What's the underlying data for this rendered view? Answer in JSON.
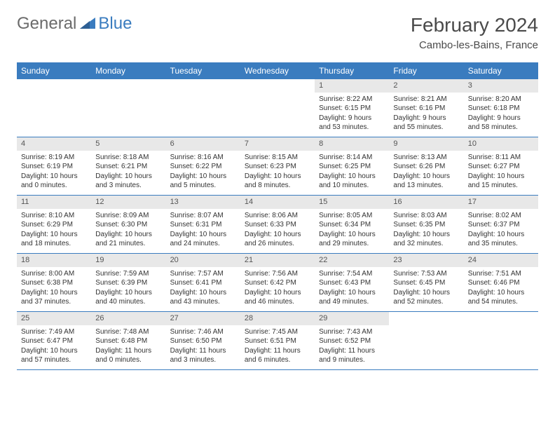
{
  "brand": {
    "textGray": "General",
    "textBlue": "Blue"
  },
  "title": "February 2024",
  "subtitle": "Cambo-les-Bains, France",
  "colors": {
    "header_bg": "#3a7cbf",
    "header_text": "#ffffff",
    "daynum_bg": "#e8e8e8",
    "border": "#3a7cbf",
    "body_text": "#333333",
    "title_text": "#4a4a4a",
    "logo_gray": "#6b6b6b",
    "logo_blue": "#3a7cbf",
    "page_bg": "#ffffff"
  },
  "typography": {
    "title_fontsize": 28,
    "subtitle_fontsize": 15,
    "logo_fontsize": 24,
    "dayheader_fontsize": 12,
    "daynum_fontsize": 11,
    "cell_fontsize": 10
  },
  "dayNames": [
    "Sunday",
    "Monday",
    "Tuesday",
    "Wednesday",
    "Thursday",
    "Friday",
    "Saturday"
  ],
  "weeks": [
    [
      {
        "n": "",
        "lines": []
      },
      {
        "n": "",
        "lines": []
      },
      {
        "n": "",
        "lines": []
      },
      {
        "n": "",
        "lines": []
      },
      {
        "n": "1",
        "lines": [
          "Sunrise: 8:22 AM",
          "Sunset: 6:15 PM",
          "Daylight: 9 hours and 53 minutes."
        ]
      },
      {
        "n": "2",
        "lines": [
          "Sunrise: 8:21 AM",
          "Sunset: 6:16 PM",
          "Daylight: 9 hours and 55 minutes."
        ]
      },
      {
        "n": "3",
        "lines": [
          "Sunrise: 8:20 AM",
          "Sunset: 6:18 PM",
          "Daylight: 9 hours and 58 minutes."
        ]
      }
    ],
    [
      {
        "n": "4",
        "lines": [
          "Sunrise: 8:19 AM",
          "Sunset: 6:19 PM",
          "Daylight: 10 hours and 0 minutes."
        ]
      },
      {
        "n": "5",
        "lines": [
          "Sunrise: 8:18 AM",
          "Sunset: 6:21 PM",
          "Daylight: 10 hours and 3 minutes."
        ]
      },
      {
        "n": "6",
        "lines": [
          "Sunrise: 8:16 AM",
          "Sunset: 6:22 PM",
          "Daylight: 10 hours and 5 minutes."
        ]
      },
      {
        "n": "7",
        "lines": [
          "Sunrise: 8:15 AM",
          "Sunset: 6:23 PM",
          "Daylight: 10 hours and 8 minutes."
        ]
      },
      {
        "n": "8",
        "lines": [
          "Sunrise: 8:14 AM",
          "Sunset: 6:25 PM",
          "Daylight: 10 hours and 10 minutes."
        ]
      },
      {
        "n": "9",
        "lines": [
          "Sunrise: 8:13 AM",
          "Sunset: 6:26 PM",
          "Daylight: 10 hours and 13 minutes."
        ]
      },
      {
        "n": "10",
        "lines": [
          "Sunrise: 8:11 AM",
          "Sunset: 6:27 PM",
          "Daylight: 10 hours and 15 minutes."
        ]
      }
    ],
    [
      {
        "n": "11",
        "lines": [
          "Sunrise: 8:10 AM",
          "Sunset: 6:29 PM",
          "Daylight: 10 hours and 18 minutes."
        ]
      },
      {
        "n": "12",
        "lines": [
          "Sunrise: 8:09 AM",
          "Sunset: 6:30 PM",
          "Daylight: 10 hours and 21 minutes."
        ]
      },
      {
        "n": "13",
        "lines": [
          "Sunrise: 8:07 AM",
          "Sunset: 6:31 PM",
          "Daylight: 10 hours and 24 minutes."
        ]
      },
      {
        "n": "14",
        "lines": [
          "Sunrise: 8:06 AM",
          "Sunset: 6:33 PM",
          "Daylight: 10 hours and 26 minutes."
        ]
      },
      {
        "n": "15",
        "lines": [
          "Sunrise: 8:05 AM",
          "Sunset: 6:34 PM",
          "Daylight: 10 hours and 29 minutes."
        ]
      },
      {
        "n": "16",
        "lines": [
          "Sunrise: 8:03 AM",
          "Sunset: 6:35 PM",
          "Daylight: 10 hours and 32 minutes."
        ]
      },
      {
        "n": "17",
        "lines": [
          "Sunrise: 8:02 AM",
          "Sunset: 6:37 PM",
          "Daylight: 10 hours and 35 minutes."
        ]
      }
    ],
    [
      {
        "n": "18",
        "lines": [
          "Sunrise: 8:00 AM",
          "Sunset: 6:38 PM",
          "Daylight: 10 hours and 37 minutes."
        ]
      },
      {
        "n": "19",
        "lines": [
          "Sunrise: 7:59 AM",
          "Sunset: 6:39 PM",
          "Daylight: 10 hours and 40 minutes."
        ]
      },
      {
        "n": "20",
        "lines": [
          "Sunrise: 7:57 AM",
          "Sunset: 6:41 PM",
          "Daylight: 10 hours and 43 minutes."
        ]
      },
      {
        "n": "21",
        "lines": [
          "Sunrise: 7:56 AM",
          "Sunset: 6:42 PM",
          "Daylight: 10 hours and 46 minutes."
        ]
      },
      {
        "n": "22",
        "lines": [
          "Sunrise: 7:54 AM",
          "Sunset: 6:43 PM",
          "Daylight: 10 hours and 49 minutes."
        ]
      },
      {
        "n": "23",
        "lines": [
          "Sunrise: 7:53 AM",
          "Sunset: 6:45 PM",
          "Daylight: 10 hours and 52 minutes."
        ]
      },
      {
        "n": "24",
        "lines": [
          "Sunrise: 7:51 AM",
          "Sunset: 6:46 PM",
          "Daylight: 10 hours and 54 minutes."
        ]
      }
    ],
    [
      {
        "n": "25",
        "lines": [
          "Sunrise: 7:49 AM",
          "Sunset: 6:47 PM",
          "Daylight: 10 hours and 57 minutes."
        ]
      },
      {
        "n": "26",
        "lines": [
          "Sunrise: 7:48 AM",
          "Sunset: 6:48 PM",
          "Daylight: 11 hours and 0 minutes."
        ]
      },
      {
        "n": "27",
        "lines": [
          "Sunrise: 7:46 AM",
          "Sunset: 6:50 PM",
          "Daylight: 11 hours and 3 minutes."
        ]
      },
      {
        "n": "28",
        "lines": [
          "Sunrise: 7:45 AM",
          "Sunset: 6:51 PM",
          "Daylight: 11 hours and 6 minutes."
        ]
      },
      {
        "n": "29",
        "lines": [
          "Sunrise: 7:43 AM",
          "Sunset: 6:52 PM",
          "Daylight: 11 hours and 9 minutes."
        ]
      },
      {
        "n": "",
        "lines": []
      },
      {
        "n": "",
        "lines": []
      }
    ]
  ]
}
